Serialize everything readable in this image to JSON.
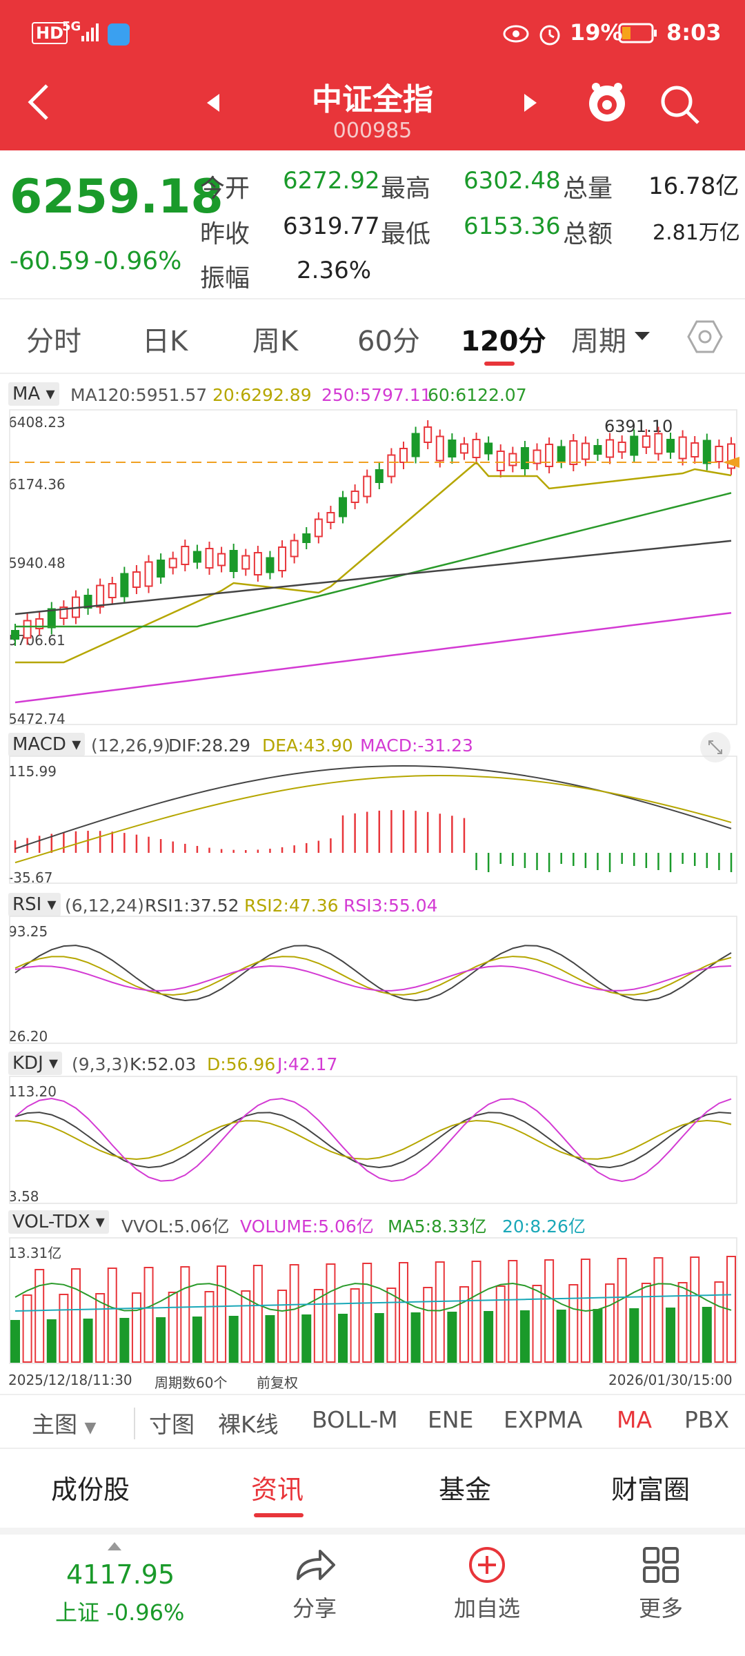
{
  "status_bar": {
    "hd": "HD",
    "signal": "5G",
    "battery": "19%",
    "time": "8:03"
  },
  "header": {
    "title": "中证全指",
    "code": "000985"
  },
  "quote": {
    "price": "6259.18",
    "change": "-60.59",
    "change_pct": "-0.96%",
    "open_label": "今开",
    "open": "6272.92",
    "high_label": "最高",
    "high": "6302.48",
    "vol_label": "总量",
    "vol": "16.78亿",
    "prev_label": "昨收",
    "prev": "6319.77",
    "low_label": "最低",
    "low": "6153.36",
    "amt_label": "总额",
    "amt": "2.81万亿",
    "amp_label": "振幅",
    "amp": "2.36%"
  },
  "tabs": [
    "分时",
    "日K",
    "周K",
    "60分",
    "120分",
    "周期"
  ],
  "active_tab": "120分",
  "ma_panel": {
    "select": "MA",
    "ma120": "MA120:5951.57",
    "ma20": "20:6292.89",
    "ma250": "250:5797.11",
    "ma60": "60:6122.07",
    "axis": [
      "6408.23",
      "6174.36",
      "5940.48",
      "5706.61",
      "5472.74"
    ],
    "peak_label": "6391.10"
  },
  "macd_panel": {
    "select": "MACD",
    "params": "(12,26,9)",
    "dif": "DIF:28.29",
    "dea": "DEA:43.90",
    "macd": "MACD:-31.23",
    "axis_top": "115.99",
    "axis_bottom": "-35.67"
  },
  "rsi_panel": {
    "select": "RSI",
    "params": "(6,12,24)",
    "rsi1": "RSI1:37.52",
    "rsi2": "RSI2:47.36",
    "rsi3": "RSI3:55.04",
    "axis_top": "93.25",
    "axis_bottom": "26.20"
  },
  "kdj_panel": {
    "select": "KDJ",
    "params": "(9,3,3)",
    "k": "K:52.03",
    "d": "D:56.96",
    "j": "J:42.17",
    "axis_top": "113.20",
    "axis_bottom": "3.58"
  },
  "vol_panel": {
    "select": "VOL-TDX",
    "vvol": "VVOL:5.06亿",
    "volume": "VOLUME:5.06亿",
    "ma5": "MA5:8.33亿",
    "ma20": "20:8.26亿",
    "axis_top": "13.31亿"
  },
  "footer_axis": {
    "start": "2025/12/18/11:30",
    "period": "周期数60个",
    "adj": "前复权",
    "end": "2026/01/30/15:00"
  },
  "indicator_bar": {
    "main": "主图",
    "items": [
      "寸图",
      "裸K线",
      "BOLL-M",
      "ENE",
      "EXPMA",
      "MA",
      "PBX"
    ],
    "active": "MA"
  },
  "sub_tabs": {
    "items": [
      "成份股",
      "资讯",
      "基金",
      "财富圈"
    ],
    "active": "资讯"
  },
  "bottom_nav": {
    "index_value": "4117.95",
    "index_label": "上证 -0.96%",
    "share": "分享",
    "add": "加自选",
    "more": "更多"
  },
  "colors": {
    "brand_red": "#e8353a",
    "up_red": "#e8353a",
    "down_green": "#1a9a2a",
    "ma20": "#b5a600",
    "ma60": "#2a9a2a",
    "ma120": "#444444",
    "ma250": "#d33ad3"
  }
}
